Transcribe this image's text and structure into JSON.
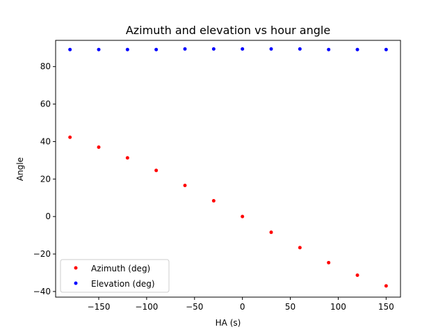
{
  "chart_data": {
    "type": "scatter",
    "title": "Azimuth and elevation vs hour angle",
    "xlabel": "HA (s)",
    "ylabel": "Angle",
    "xlim": [
      -195,
      165
    ],
    "ylim": [
      -43,
      94
    ],
    "xticks": [
      -150,
      -100,
      -50,
      0,
      50,
      100,
      150
    ],
    "yticks": [
      -40,
      -20,
      0,
      20,
      40,
      60,
      80
    ],
    "grid": false,
    "legend_position": "lower-left",
    "series": [
      {
        "name": "Azimuth (deg)",
        "color": "#ff0000",
        "x": [
          -180,
          -150,
          -120,
          -90,
          -60,
          -30,
          0,
          30,
          60,
          90,
          120,
          150
        ],
        "y": [
          42.3,
          37.0,
          31.3,
          24.6,
          16.6,
          8.4,
          0.0,
          -8.4,
          -16.6,
          -24.6,
          -31.3,
          -37.0
        ]
      },
      {
        "name": "Elevation (deg)",
        "color": "#0000ff",
        "x": [
          -180,
          -150,
          -120,
          -90,
          -60,
          -30,
          0,
          30,
          60,
          90,
          120,
          150
        ],
        "y": [
          89.1,
          89.1,
          89.1,
          89.1,
          89.4,
          89.4,
          89.4,
          89.4,
          89.4,
          89.1,
          89.1,
          89.1
        ]
      }
    ]
  }
}
